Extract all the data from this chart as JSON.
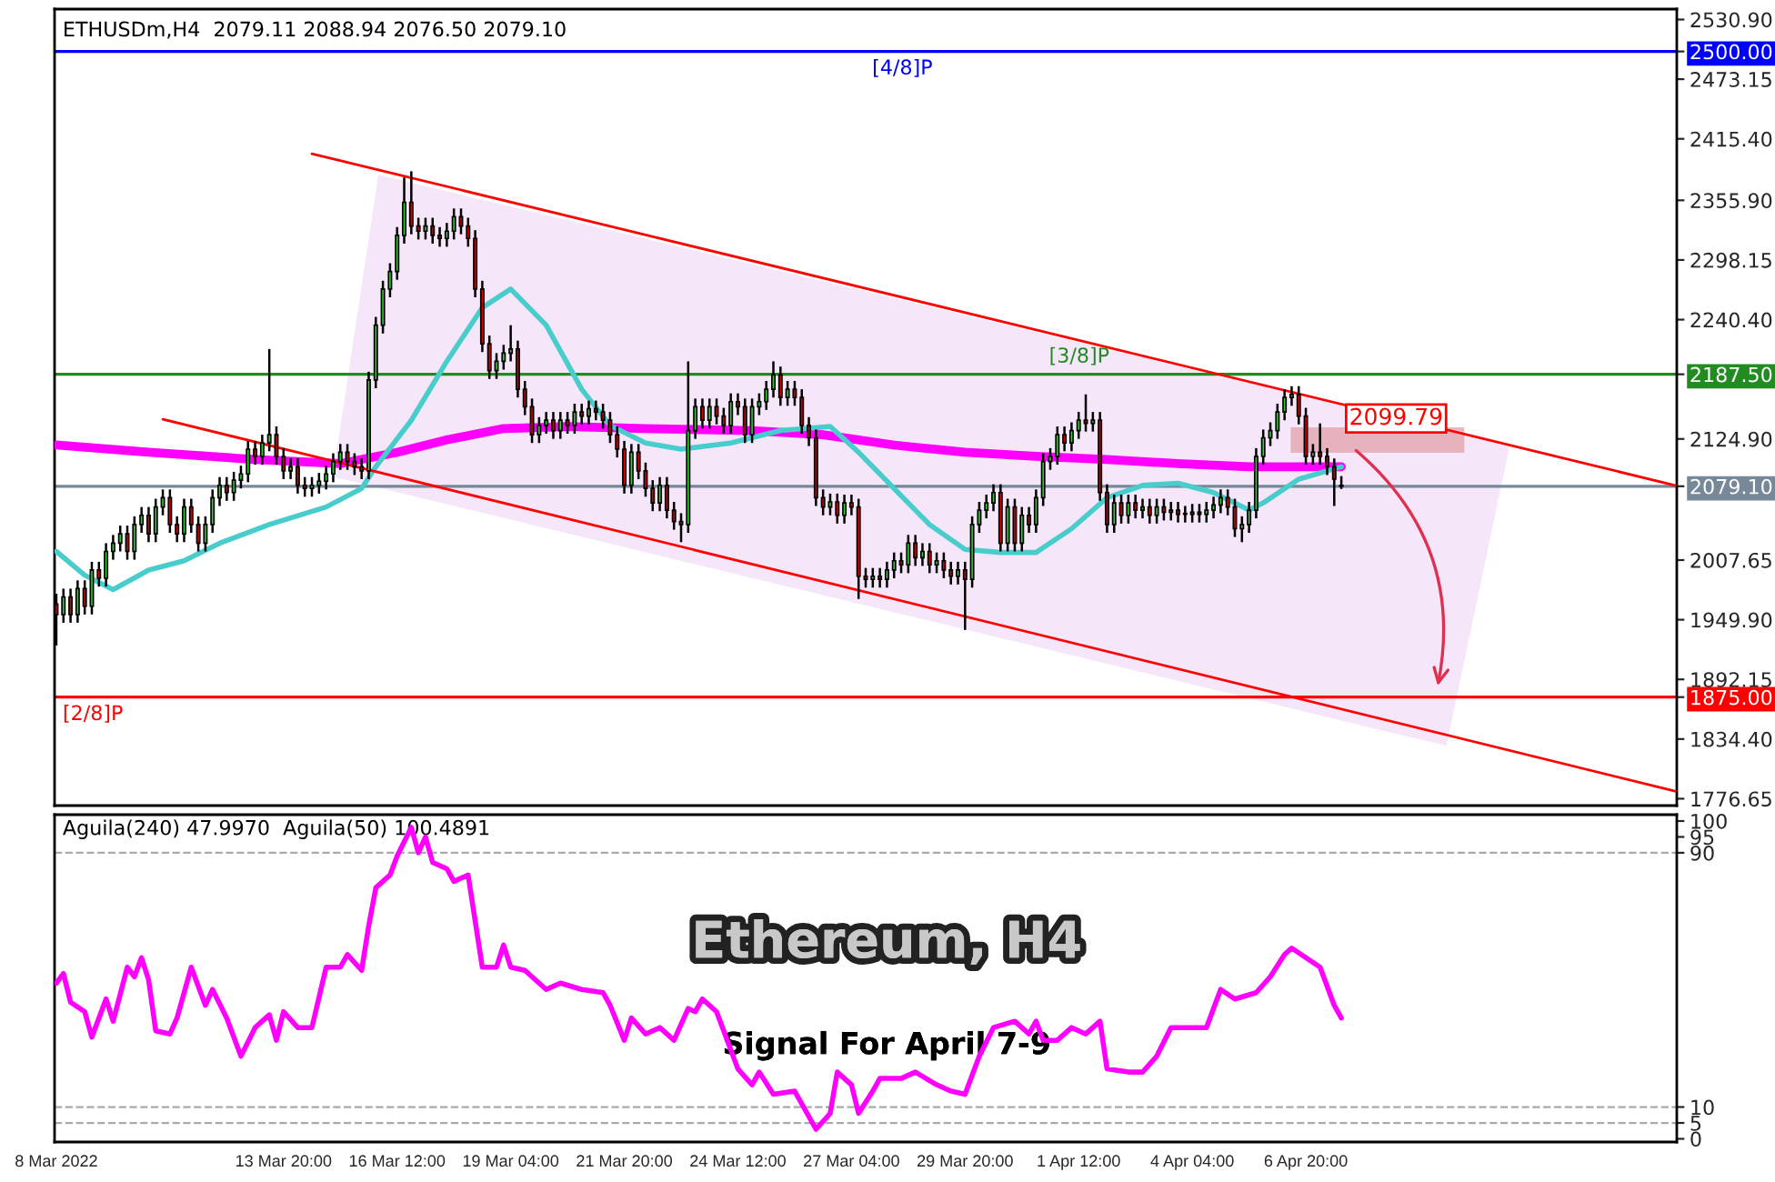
{
  "chart_data": [
    {
      "type": "candlestick",
      "title": "ETHUSDm,H4  2079.11 2088.94 2076.50 2079.10",
      "x": [
        "2022-03-08T12:00",
        "2022-03-08T16:00",
        "2022-03-08T20:00",
        "2022-03-09T00:00",
        "2022-03-09T04:00",
        "2022-03-09T08:00",
        "2022-03-09T12:00",
        "2022-03-09T16:00",
        "2022-03-09T20:00",
        "2022-03-10T00:00",
        "2022-03-10T04:00",
        "2022-03-10T08:00",
        "2022-03-10T12:00",
        "2022-03-10T16:00",
        "2022-03-10T20:00",
        "2022-03-11T00:00",
        "2022-03-11T04:00",
        "2022-03-11T08:00",
        "2022-03-11T12:00",
        "2022-03-11T16:00",
        "2022-03-11T20:00",
        "2022-03-12T00:00",
        "2022-03-12T04:00",
        "2022-03-12T08:00",
        "2022-03-12T12:00",
        "2022-03-12T16:00",
        "2022-03-12T20:00",
        "2022-03-13T00:00",
        "2022-03-13T04:00",
        "2022-03-13T08:00",
        "2022-03-13T12:00",
        "2022-03-13T16:00",
        "2022-03-13T20:00",
        "2022-03-14T00:00",
        "2022-03-14T04:00",
        "2022-03-14T08:00",
        "2022-03-14T12:00",
        "2022-03-14T16:00",
        "2022-03-14T20:00",
        "2022-03-15T00:00",
        "2022-03-15T04:00",
        "2022-03-15T08:00",
        "2022-03-15T12:00",
        "2022-03-15T16:00",
        "2022-03-15T20:00",
        "2022-03-16T00:00",
        "2022-03-16T04:00",
        "2022-03-16T08:00",
        "2022-03-16T12:00",
        "2022-03-16T16:00",
        "2022-03-16T20:00",
        "2022-03-17T00:00",
        "2022-03-17T04:00",
        "2022-03-17T08:00",
        "2022-03-17T12:00",
        "2022-03-17T16:00",
        "2022-03-17T20:00",
        "2022-03-18T00:00",
        "2022-03-18T04:00",
        "2022-03-18T08:00",
        "2022-03-18T12:00",
        "2022-03-18T16:00",
        "2022-03-18T20:00",
        "2022-03-19T00:00",
        "2022-03-19T04:00",
        "2022-03-19T08:00",
        "2022-03-19T12:00",
        "2022-03-19T16:00",
        "2022-03-19T20:00",
        "2022-03-20T00:00",
        "2022-03-20T04:00",
        "2022-03-20T08:00",
        "2022-03-20T12:00",
        "2022-03-20T16:00",
        "2022-03-20T20:00",
        "2022-03-21T00:00",
        "2022-03-21T04:00",
        "2022-03-21T08:00",
        "2022-03-21T12:00",
        "2022-03-21T16:00",
        "2022-03-21T20:00",
        "2022-03-22T00:00",
        "2022-03-22T04:00",
        "2022-03-22T08:00",
        "2022-03-22T12:00",
        "2022-03-22T16:00",
        "2022-03-22T20:00",
        "2022-03-23T00:00",
        "2022-03-23T04:00",
        "2022-03-23T08:00",
        "2022-03-23T12:00",
        "2022-03-23T16:00",
        "2022-03-23T20:00",
        "2022-03-24T00:00",
        "2022-03-24T04:00",
        "2022-03-24T08:00",
        "2022-03-24T12:00",
        "2022-03-24T16:00",
        "2022-03-24T20:00",
        "2022-03-25T00:00",
        "2022-03-25T04:00",
        "2022-03-25T08:00",
        "2022-03-25T12:00",
        "2022-03-25T16:00",
        "2022-03-25T20:00",
        "2022-03-26T00:00",
        "2022-03-26T04:00",
        "2022-03-26T08:00",
        "2022-03-26T12:00",
        "2022-03-26T16:00",
        "2022-03-26T20:00",
        "2022-03-27T00:00",
        "2022-03-27T04:00",
        "2022-03-27T08:00",
        "2022-03-27T12:00",
        "2022-03-27T16:00",
        "2022-03-27T20:00",
        "2022-03-28T00:00",
        "2022-03-28T04:00",
        "2022-03-28T08:00",
        "2022-03-28T12:00",
        "2022-03-28T16:00",
        "2022-03-28T20:00",
        "2022-03-29T00:00",
        "2022-03-29T04:00",
        "2022-03-29T08:00",
        "2022-03-29T12:00",
        "2022-03-29T16:00",
        "2022-03-29T20:00",
        "2022-03-30T00:00",
        "2022-03-30T04:00",
        "2022-03-30T08:00",
        "2022-03-30T12:00",
        "2022-03-30T16:00",
        "2022-03-30T20:00",
        "2022-03-31T00:00",
        "2022-03-31T04:00",
        "2022-03-31T08:00",
        "2022-03-31T12:00",
        "2022-03-31T16:00",
        "2022-03-31T20:00",
        "2022-04-01T00:00",
        "2022-04-01T04:00",
        "2022-04-01T08:00",
        "2022-04-01T12:00",
        "2022-04-01T16:00",
        "2022-04-01T20:00",
        "2022-04-02T00:00",
        "2022-04-02T04:00",
        "2022-04-02T08:00",
        "2022-04-02T12:00",
        "2022-04-02T16:00",
        "2022-04-02T20:00",
        "2022-04-03T00:00",
        "2022-04-03T04:00",
        "2022-04-03T08:00",
        "2022-04-03T12:00",
        "2022-04-03T16:00",
        "2022-04-03T20:00",
        "2022-04-04T00:00",
        "2022-04-04T04:00",
        "2022-04-04T08:00",
        "2022-04-04T12:00",
        "2022-04-04T16:00",
        "2022-04-04T20:00",
        "2022-04-05T00:00",
        "2022-04-05T04:00",
        "2022-04-05T08:00",
        "2022-04-05T12:00",
        "2022-04-05T16:00",
        "2022-04-05T20:00",
        "2022-04-06T00:00",
        "2022-04-06T04:00",
        "2022-04-06T08:00",
        "2022-04-06T12:00",
        "2022-04-06T16:00",
        "2022-04-06T20:00",
        "2022-04-07T00:00",
        "2022-04-07T04:00",
        "2022-04-07T08:00",
        "2022-04-07T12:00",
        "2022-04-07T16:00"
      ],
      "ohlc": [
        [
          1965,
          1975,
          1925,
          1955
        ],
        [
          1955,
          1980,
          1947,
          1972
        ],
        [
          1972,
          1980,
          1947,
          1955
        ],
        [
          1955,
          1988,
          1947,
          1980
        ],
        [
          1980,
          1988,
          1955,
          1963
        ],
        [
          1963,
          2006,
          1955,
          1998
        ],
        [
          1998,
          2006,
          1982,
          1990
        ],
        [
          1990,
          2024,
          1982,
          2016
        ],
        [
          2016,
          2032,
          2008,
          2024
        ],
        [
          2024,
          2041,
          2016,
          2033
        ],
        [
          2033,
          2041,
          2008,
          2016
        ],
        [
          2016,
          2050,
          2008,
          2042
        ],
        [
          2042,
          2059,
          2034,
          2051
        ],
        [
          2051,
          2059,
          2025,
          2033
        ],
        [
          2033,
          2067,
          2025,
          2059
        ],
        [
          2059,
          2076,
          2051,
          2068
        ],
        [
          2068,
          2076,
          2034,
          2042
        ],
        [
          2042,
          2050,
          2025,
          2033
        ],
        [
          2033,
          2067,
          2025,
          2059
        ],
        [
          2059,
          2067,
          2034,
          2042
        ],
        [
          2042,
          2050,
          2016,
          2024
        ],
        [
          2024,
          2050,
          2016,
          2042
        ],
        [
          2042,
          2076,
          2034,
          2068
        ],
        [
          2068,
          2088,
          2060,
          2080
        ],
        [
          2080,
          2088,
          2065,
          2073
        ],
        [
          2073,
          2093,
          2065,
          2085
        ],
        [
          2085,
          2099,
          2077,
          2091
        ],
        [
          2091,
          2123,
          2083,
          2115
        ],
        [
          2115,
          2123,
          2100,
          2108
        ],
        [
          2108,
          2129,
          2100,
          2121
        ],
        [
          2121,
          2212,
          2113,
          2129
        ],
        [
          2129,
          2137,
          2100,
          2108
        ],
        [
          2108,
          2116,
          2086,
          2094
        ],
        [
          2094,
          2106,
          2086,
          2098
        ],
        [
          2098,
          2106,
          2072,
          2080
        ],
        [
          2080,
          2088,
          2069,
          2077
        ],
        [
          2077,
          2088,
          2069,
          2080
        ],
        [
          2080,
          2092,
          2072,
          2084
        ],
        [
          2084,
          2099,
          2076,
          2091
        ],
        [
          2091,
          2111,
          2083,
          2103
        ],
        [
          2103,
          2120,
          2095,
          2112
        ],
        [
          2112,
          2120,
          2095,
          2103
        ],
        [
          2103,
          2111,
          2090,
          2098
        ],
        [
          2098,
          2106,
          2086,
          2094
        ],
        [
          2094,
          2190,
          2086,
          2182
        ],
        [
          2182,
          2243,
          2174,
          2235
        ],
        [
          2235,
          2278,
          2227,
          2270
        ],
        [
          2270,
          2295,
          2262,
          2287
        ],
        [
          2287,
          2330,
          2279,
          2322
        ],
        [
          2322,
          2378,
          2314,
          2354
        ],
        [
          2354,
          2384,
          2323,
          2331
        ],
        [
          2331,
          2339,
          2318,
          2326
        ],
        [
          2326,
          2339,
          2318,
          2331
        ],
        [
          2331,
          2339,
          2314,
          2322
        ],
        [
          2322,
          2330,
          2311,
          2319
        ],
        [
          2319,
          2334,
          2311,
          2326
        ],
        [
          2326,
          2348,
          2318,
          2340
        ],
        [
          2340,
          2348,
          2323,
          2331
        ],
        [
          2331,
          2339,
          2311,
          2319
        ],
        [
          2319,
          2327,
          2262,
          2270
        ],
        [
          2270,
          2278,
          2209,
          2217
        ],
        [
          2217,
          2225,
          2183,
          2191
        ],
        [
          2191,
          2208,
          2183,
          2200
        ],
        [
          2200,
          2216,
          2192,
          2208
        ],
        [
          2208,
          2235,
          2200,
          2212
        ],
        [
          2212,
          2220,
          2165,
          2173
        ],
        [
          2173,
          2181,
          2148,
          2156
        ],
        [
          2156,
          2164,
          2121,
          2129
        ],
        [
          2129,
          2146,
          2121,
          2138
        ],
        [
          2138,
          2151,
          2130,
          2143
        ],
        [
          2143,
          2151,
          2125,
          2133
        ],
        [
          2133,
          2151,
          2125,
          2143
        ],
        [
          2143,
          2151,
          2130,
          2138
        ],
        [
          2138,
          2159,
          2130,
          2151
        ],
        [
          2151,
          2159,
          2139,
          2147
        ],
        [
          2147,
          2162,
          2139,
          2154
        ],
        [
          2154,
          2162,
          2143,
          2151
        ],
        [
          2151,
          2159,
          2135,
          2143
        ],
        [
          2143,
          2151,
          2121,
          2129
        ],
        [
          2129,
          2137,
          2107,
          2115
        ],
        [
          2115,
          2123,
          2072,
          2080
        ],
        [
          2080,
          2120,
          2072,
          2112
        ],
        [
          2112,
          2120,
          2086,
          2094
        ],
        [
          2094,
          2102,
          2069,
          2077
        ],
        [
          2077,
          2085,
          2055,
          2063
        ],
        [
          2063,
          2088,
          2055,
          2080
        ],
        [
          2080,
          2088,
          2048,
          2056
        ],
        [
          2056,
          2064,
          2037,
          2045
        ],
        [
          2045,
          2053,
          2025,
          2042
        ],
        [
          2042,
          2200,
          2034,
          2133
        ],
        [
          2133,
          2164,
          2125,
          2156
        ],
        [
          2156,
          2164,
          2135,
          2143
        ],
        [
          2143,
          2164,
          2135,
          2156
        ],
        [
          2156,
          2164,
          2139,
          2147
        ],
        [
          2147,
          2155,
          2130,
          2138
        ],
        [
          2138,
          2169,
          2130,
          2161
        ],
        [
          2161,
          2169,
          2148,
          2156
        ],
        [
          2156,
          2164,
          2121,
          2129
        ],
        [
          2129,
          2164,
          2121,
          2156
        ],
        [
          2156,
          2169,
          2148,
          2161
        ],
        [
          2161,
          2181,
          2153,
          2173
        ],
        [
          2173,
          2200,
          2165,
          2187
        ],
        [
          2187,
          2195,
          2157,
          2165
        ],
        [
          2165,
          2181,
          2157,
          2173
        ],
        [
          2173,
          2181,
          2157,
          2165
        ],
        [
          2165,
          2173,
          2130,
          2138
        ],
        [
          2138,
          2146,
          2118,
          2126
        ],
        [
          2126,
          2134,
          2060,
          2068
        ],
        [
          2068,
          2076,
          2051,
          2059
        ],
        [
          2059,
          2072,
          2051,
          2064
        ],
        [
          2064,
          2072,
          2043,
          2051
        ],
        [
          2051,
          2071,
          2043,
          2063
        ],
        [
          2063,
          2071,
          2051,
          2059
        ],
        [
          2059,
          2067,
          1970,
          1992
        ],
        [
          1992,
          2000,
          1981,
          1989
        ],
        [
          1989,
          2000,
          1981,
          1992
        ],
        [
          1992,
          2000,
          1981,
          1989
        ],
        [
          1989,
          2006,
          1981,
          1998
        ],
        [
          1998,
          2015,
          1990,
          2007
        ],
        [
          2007,
          2015,
          1995,
          2003
        ],
        [
          2003,
          2032,
          1995,
          2024
        ],
        [
          2024,
          2032,
          2002,
          2010
        ],
        [
          2010,
          2024,
          2002,
          2016
        ],
        [
          2016,
          2024,
          1995,
          2003
        ],
        [
          2003,
          2015,
          1995,
          2007
        ],
        [
          2007,
          2015,
          1990,
          1998
        ],
        [
          1998,
          2006,
          1984,
          1992
        ],
        [
          1992,
          2006,
          1984,
          1998
        ],
        [
          1998,
          2006,
          1940,
          1989
        ],
        [
          1989,
          2050,
          1981,
          2042
        ],
        [
          2042,
          2064,
          2034,
          2056
        ],
        [
          2056,
          2071,
          2048,
          2063
        ],
        [
          2063,
          2081,
          2055,
          2073
        ],
        [
          2073,
          2081,
          2016,
          2024
        ],
        [
          2024,
          2067,
          2016,
          2059
        ],
        [
          2059,
          2067,
          2016,
          2024
        ],
        [
          2024,
          2059,
          2016,
          2051
        ],
        [
          2051,
          2059,
          2034,
          2042
        ],
        [
          2042,
          2076,
          2034,
          2068
        ],
        [
          2068,
          2111,
          2060,
          2103
        ],
        [
          2103,
          2116,
          2095,
          2108
        ],
        [
          2108,
          2137,
          2100,
          2129
        ],
        [
          2129,
          2137,
          2113,
          2121
        ],
        [
          2121,
          2141,
          2113,
          2133
        ],
        [
          2133,
          2151,
          2125,
          2143
        ],
        [
          2143,
          2168,
          2132,
          2140
        ],
        [
          2140,
          2151,
          2132,
          2143
        ],
        [
          2143,
          2151,
          2065,
          2073
        ],
        [
          2073,
          2081,
          2034,
          2042
        ],
        [
          2042,
          2071,
          2034,
          2063
        ],
        [
          2063,
          2071,
          2043,
          2051
        ],
        [
          2051,
          2071,
          2043,
          2063
        ],
        [
          2063,
          2071,
          2048,
          2056
        ],
        [
          2056,
          2067,
          2048,
          2059
        ],
        [
          2059,
          2067,
          2043,
          2051
        ],
        [
          2051,
          2067,
          2043,
          2059
        ],
        [
          2059,
          2067,
          2046,
          2054
        ],
        [
          2054,
          2064,
          2046,
          2056
        ],
        [
          2056,
          2064,
          2044,
          2052
        ],
        [
          2052,
          2060,
          2044,
          2052
        ],
        [
          2052,
          2062,
          2044,
          2054
        ],
        [
          2054,
          2062,
          2044,
          2052
        ],
        [
          2052,
          2064,
          2044,
          2056
        ],
        [
          2056,
          2069,
          2048,
          2061
        ],
        [
          2061,
          2076,
          2053,
          2068
        ],
        [
          2068,
          2076,
          2051,
          2059
        ],
        [
          2059,
          2067,
          2030,
          2038
        ],
        [
          2038,
          2050,
          2025,
          2042
        ],
        [
          2042,
          2064,
          2034,
          2056
        ],
        [
          2056,
          2116,
          2048,
          2108
        ],
        [
          2108,
          2134,
          2100,
          2126
        ],
        [
          2126,
          2141,
          2118,
          2133
        ],
        [
          2133,
          2159,
          2125,
          2151
        ],
        [
          2151,
          2173,
          2143,
          2165
        ],
        [
          2165,
          2176,
          2157,
          2168
        ],
        [
          2168,
          2176,
          2139,
          2147
        ],
        [
          2147,
          2155,
          2100,
          2108
        ],
        [
          2108,
          2120,
          2100,
          2112
        ],
        [
          2112,
          2140,
          2100,
          2108
        ],
        [
          2108,
          2116,
          2090,
          2098
        ],
        [
          2098,
          2106,
          2060,
          2086
        ],
        [
          2079.11,
          2088.94,
          2076.5,
          2079.1
        ]
      ],
      "series": [
        {
          "type": "line",
          "color": "#ff00ff",
          "x": [
            "2022-03-08T12:00",
            "2022-03-10T16:00",
            "2022-03-13T04:00",
            "2022-03-15T04:00",
            "2022-03-16T12:00",
            "2022-03-17T16:00",
            "2022-03-19T00:00",
            "2022-03-20T12:00",
            "2022-03-22T08:00",
            "2022-03-24T20:00",
            "2022-03-26T12:00",
            "2022-03-28T04:00",
            "2022-03-29T20:00",
            "2022-03-31T12:00",
            "2022-04-02T04:00",
            "2022-04-03T20:00",
            "2022-04-05T12:00",
            "2022-04-07T16:00"
          ],
          "values": [
            2119,
            2112,
            2105,
            2101,
            2112,
            2124,
            2135,
            2137,
            2135,
            2133,
            2129,
            2119,
            2112,
            2108,
            2105,
            2101,
            2098,
            2098
          ]
        },
        {
          "type": "line",
          "color": "#48cccc",
          "x": [
            "2022-03-08T12:00",
            "2022-03-09T04:00",
            "2022-03-09T20:00",
            "2022-03-10T16:00",
            "2022-03-11T12:00",
            "2022-03-12T08:00",
            "2022-03-13T12:00",
            "2022-03-14T20:00",
            "2022-03-15T16:00",
            "2022-03-16T00:00",
            "2022-03-16T20:00",
            "2022-03-17T16:00",
            "2022-03-18T12:00",
            "2022-03-19T04:00",
            "2022-03-20T00:00",
            "2022-03-20T20:00",
            "2022-03-21T12:00",
            "2022-03-22T08:00",
            "2022-03-23T04:00",
            "2022-03-24T08:00",
            "2022-03-25T12:00",
            "2022-03-26T16:00",
            "2022-03-27T08:00",
            "2022-03-28T04:00",
            "2022-03-29T00:00",
            "2022-03-29T20:00",
            "2022-03-30T16:00",
            "2022-03-31T12:00",
            "2022-04-01T08:00",
            "2022-04-02T04:00",
            "2022-04-03T00:00",
            "2022-04-03T20:00",
            "2022-04-04T16:00",
            "2022-04-05T12:00",
            "2022-04-05T20:00",
            "2022-04-06T16:00",
            "2022-04-07T16:00"
          ],
          "values": [
            2016,
            1993,
            1979,
            1998,
            2007,
            2024,
            2042,
            2059,
            2077,
            2098,
            2143,
            2200,
            2252,
            2270,
            2235,
            2173,
            2138,
            2121,
            2115,
            2121,
            2133,
            2137,
            2112,
            2077,
            2042,
            2018,
            2015,
            2015,
            2038,
            2068,
            2080,
            2082,
            2073,
            2056,
            2063,
            2086,
            2098
          ]
        },
        {
          "type": "line",
          "color": "#ff0000",
          "x": [
            "2022-03-14T12:00",
            "2022-04-15T12:00"
          ],
          "values": [
            2401,
            2080
          ]
        },
        {
          "type": "line",
          "color": "#ff0000",
          "x": [
            "2022-03-11T00:00",
            "2022-04-15T12:00"
          ],
          "values": [
            2144,
            1784
          ]
        }
      ],
      "xlim": [
        "2022-03-08T11:00",
        "2022-04-15T13:00"
      ],
      "ylim": [
        1770,
        2541
      ],
      "yticks": [
        {
          "value": 2530.9,
          "label": "2530.90"
        },
        {
          "value": 2473.15,
          "label": "2473.15"
        },
        {
          "value": 2415.4,
          "label": "2415.40"
        },
        {
          "value": 2355.9,
          "label": "2355.90"
        },
        {
          "value": 2298.15,
          "label": "2298.15"
        },
        {
          "value": 2240.4,
          "label": "2240.40"
        },
        {
          "value": 2124.9,
          "label": "2124.90"
        },
        {
          "value": 2007.65,
          "label": "2007.65"
        },
        {
          "value": 1949.9,
          "label": "1949.90"
        },
        {
          "value": 1892.15,
          "label": "1892.15"
        },
        {
          "value": 1834.4,
          "label": "1834.40"
        },
        {
          "value": 1776.65,
          "label": "1776.65"
        },
        {
          "value": 2500,
          "label": "2500.00"
        },
        {
          "value": 2187.5,
          "label": "2187.50"
        },
        {
          "value": 2079.1,
          "label": "2079.10"
        },
        {
          "value": 1875,
          "label": "1875.00"
        }
      ],
      "tick_labels": "y",
      "ref_lines": [
        {
          "axis": "y",
          "value": 2500,
          "label": "[4/8]P",
          "color": "#0000ff",
          "line_style": "solid"
        },
        {
          "axis": "y",
          "value": 2187.5,
          "label": "[3/8]P",
          "color": "#228b22",
          "line_style": "solid"
        },
        {
          "axis": "y",
          "value": 1875,
          "label": "[2/8]P",
          "color": "#ff0000",
          "line_style": "solid"
        },
        {
          "axis": "y",
          "value": 2079.1,
          "color": "#778899",
          "line_style": "solid"
        }
      ],
      "annotations": [
        "2099.79"
      ]
    },
    {
      "type": "line",
      "title": "Aguila(240) 47.9970  Aguila(50) 100.4891",
      "color": "#ff00ff",
      "x": [
        "2022-03-08T12:00",
        "2022-03-08T16:00",
        "2022-03-08T20:00",
        "2022-03-09T04:00",
        "2022-03-09T08:00",
        "2022-03-09T16:00",
        "2022-03-09T20:00",
        "2022-03-10T04:00",
        "2022-03-10T08:00",
        "2022-03-10T12:00",
        "2022-03-10T16:00",
        "2022-03-10T20:00",
        "2022-03-11T04:00",
        "2022-03-11T08:00",
        "2022-03-11T16:00",
        "2022-03-12T00:00",
        "2022-03-12T04:00",
        "2022-03-12T12:00",
        "2022-03-12T20:00",
        "2022-03-13T04:00",
        "2022-03-13T12:00",
        "2022-03-13T16:00",
        "2022-03-13T20:00",
        "2022-03-14T04:00",
        "2022-03-14T12:00",
        "2022-03-14T20:00",
        "2022-03-15T04:00",
        "2022-03-15T08:00",
        "2022-03-15T16:00",
        "2022-03-15T20:00",
        "2022-03-16T00:00",
        "2022-03-16T08:00",
        "2022-03-16T12:00",
        "2022-03-16T20:00",
        "2022-03-17T00:00",
        "2022-03-17T04:00",
        "2022-03-17T08:00",
        "2022-03-17T16:00",
        "2022-03-17T20:00",
        "2022-03-18T04:00",
        "2022-03-18T12:00",
        "2022-03-18T20:00",
        "2022-03-19T00:00",
        "2022-03-19T04:00",
        "2022-03-19T12:00",
        "2022-03-20T00:00",
        "2022-03-20T08:00",
        "2022-03-20T20:00",
        "2022-03-21T08:00",
        "2022-03-21T12:00",
        "2022-03-21T20:00",
        "2022-03-22T00:00",
        "2022-03-22T08:00",
        "2022-03-22T16:00",
        "2022-03-23T00:00",
        "2022-03-23T08:00",
        "2022-03-23T12:00",
        "2022-03-23T16:00",
        "2022-03-24T00:00",
        "2022-03-24T12:00",
        "2022-03-24T20:00",
        "2022-03-25T00:00",
        "2022-03-25T08:00",
        "2022-03-25T20:00",
        "2022-03-26T08:00",
        "2022-03-26T16:00",
        "2022-03-26T20:00",
        "2022-03-27T04:00",
        "2022-03-27T08:00",
        "2022-03-27T16:00",
        "2022-03-27T20:00",
        "2022-03-28T08:00",
        "2022-03-28T16:00",
        "2022-03-29T04:00",
        "2022-03-29T12:00",
        "2022-03-29T20:00",
        "2022-03-30T04:00",
        "2022-03-30T12:00",
        "2022-03-31T00:00",
        "2022-03-31T08:00",
        "2022-03-31T12:00",
        "2022-03-31T16:00",
        "2022-04-01T00:00",
        "2022-04-01T08:00",
        "2022-04-01T16:00",
        "2022-04-02T00:00",
        "2022-04-02T04:00",
        "2022-04-02T16:00",
        "2022-04-03T00:00",
        "2022-04-03T08:00",
        "2022-04-03T16:00",
        "2022-04-04T00:00",
        "2022-04-04T12:00",
        "2022-04-04T20:00",
        "2022-04-05T04:00",
        "2022-04-05T16:00",
        "2022-04-06T00:00",
        "2022-04-06T08:00",
        "2022-04-06T12:00",
        "2022-04-06T20:00",
        "2022-04-07T04:00",
        "2022-04-07T12:00",
        "2022-04-07T16:00"
      ],
      "values": [
        49,
        52,
        43,
        40,
        32,
        44,
        37,
        54,
        51,
        57,
        50,
        34,
        33,
        38,
        54,
        42,
        47,
        38,
        26,
        35,
        39,
        31,
        40,
        35,
        35,
        54,
        54,
        58,
        53,
        67,
        79,
        83,
        89,
        98,
        90,
        95,
        87,
        85,
        81,
        83,
        54,
        54,
        61,
        54,
        53,
        47,
        49,
        47,
        46,
        42,
        31,
        38,
        33,
        35,
        31,
        41,
        40,
        44,
        40,
        22,
        17,
        21,
        14,
        15,
        3,
        8,
        21,
        17,
        8,
        15,
        19,
        19,
        21,
        17,
        15,
        14,
        26,
        35,
        37,
        33,
        37,
        31,
        31,
        35,
        33,
        37,
        22,
        21,
        21,
        26,
        35,
        35,
        35,
        47,
        44,
        46,
        51,
        58,
        60,
        57,
        54,
        42,
        38
      ],
      "xlim": [
        "2022-03-08T11:00",
        "2022-04-15T13:00"
      ],
      "ylim": [
        -1,
        102
      ],
      "yticks": [
        0,
        5,
        10,
        90,
        95,
        100
      ],
      "xticks": [
        {
          "value": "2022-03-08T12:00",
          "label": "8 Mar 2022"
        },
        {
          "value": "2022-03-13T20:00",
          "label": "13 Mar 20:00"
        },
        {
          "value": "2022-03-16T12:00",
          "label": "16 Mar 12:00"
        },
        {
          "value": "2022-03-19T04:00",
          "label": "19 Mar 04:00"
        },
        {
          "value": "2022-03-21T20:00",
          "label": "21 Mar 20:00"
        },
        {
          "value": "2022-03-24T12:00",
          "label": "24 Mar 12:00"
        },
        {
          "value": "2022-03-27T04:00",
          "label": "27 Mar 04:00"
        },
        {
          "value": "2022-03-29T20:00",
          "label": "29 Mar 20:00"
        },
        {
          "value": "2022-04-01T12:00",
          "label": "1 Apr 12:00"
        },
        {
          "value": "2022-04-04T04:00",
          "label": "4 Apr 04:00"
        },
        {
          "value": "2022-04-06T20:00",
          "label": "6 Apr 20:00"
        }
      ],
      "ref_lines": [
        {
          "axis": "y",
          "value": 90,
          "color": "#aaaaaa",
          "line_style": "dashed"
        },
        {
          "axis": "y",
          "value": 10,
          "color": "#aaaaaa",
          "line_style": "dashed"
        },
        {
          "axis": "y",
          "value": 5,
          "color": "#aaaaaa",
          "line_style": "dashed"
        }
      ],
      "annotations": [
        "Ethereum, H4",
        "Signal For April 7-9"
      ]
    }
  ]
}
